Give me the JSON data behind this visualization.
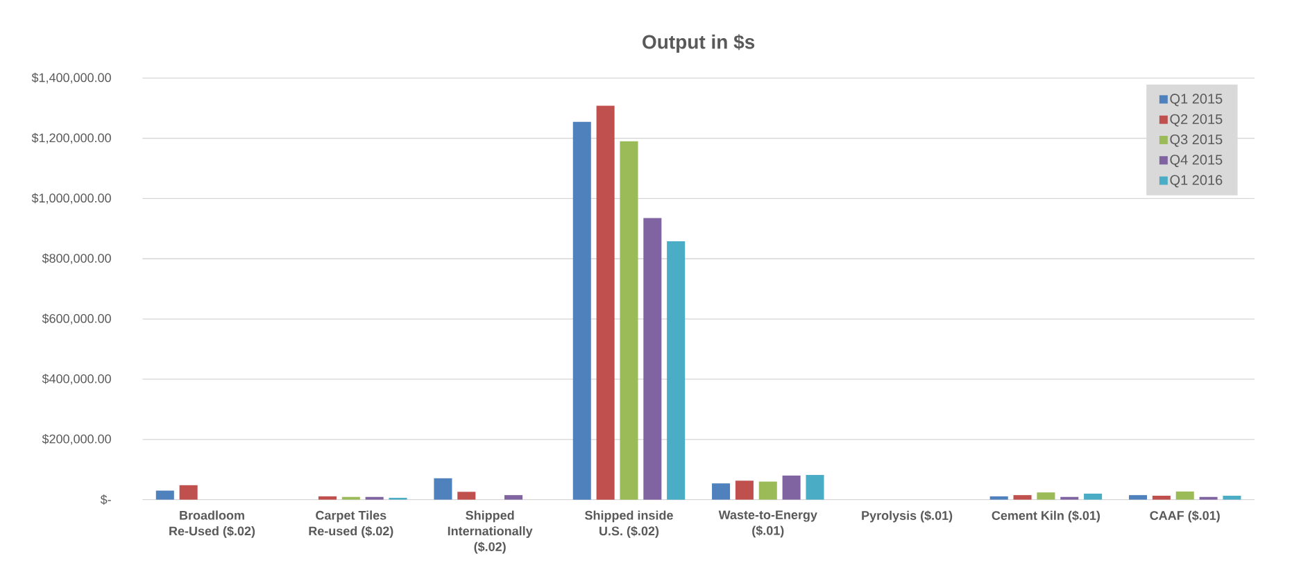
{
  "chart_data": {
    "type": "bar",
    "title": "Output in $s",
    "categories": [
      "Broadloom Re-Used ($.02)",
      "Carpet Tiles Re-used ($.02)",
      "Shipped Internationally ($.02)",
      "Shipped inside U.S. ($.02)",
      "Waste-to-Energy ($.01)",
      "Pyrolysis ($.01)",
      "Cement Kiln ($.01)",
      "CAAF ($.01)"
    ],
    "series": [
      {
        "name": "Q1 2015",
        "color": "#4f81bd",
        "values": [
          30000,
          null,
          71000,
          1255000,
          54000,
          null,
          11000,
          15000
        ]
      },
      {
        "name": "Q2 2015",
        "color": "#c0504d",
        "values": [
          48000,
          11000,
          26000,
          1308000,
          63000,
          null,
          15000,
          13000
        ]
      },
      {
        "name": "Q3 2015",
        "color": "#9bbb59",
        "values": [
          null,
          9000,
          null,
          1190000,
          60000,
          null,
          24000,
          27000
        ]
      },
      {
        "name": "Q4 2015",
        "color": "#8064a2",
        "values": [
          null,
          9000,
          15000,
          935000,
          80000,
          null,
          9000,
          9000
        ]
      },
      {
        "name": "Q1 2016",
        "color": "#4bacc6",
        "values": [
          null,
          6000,
          null,
          858000,
          82000,
          null,
          20000,
          13000
        ]
      }
    ],
    "ylim": [
      0,
      1400000
    ],
    "yticks": [
      {
        "value": 0,
        "label": "$-"
      },
      {
        "value": 200000,
        "label": "$200,000.00"
      },
      {
        "value": 400000,
        "label": "$400,000.00"
      },
      {
        "value": 600000,
        "label": "$600,000.00"
      },
      {
        "value": 800000,
        "label": "$800,000.00"
      },
      {
        "value": 1000000,
        "label": "$1,000,000.00"
      },
      {
        "value": 1200000,
        "label": "$1,200,000.00"
      },
      {
        "value": 1400000,
        "label": "$1,400,000.00"
      }
    ],
    "grid": "y",
    "legend": "top right"
  }
}
